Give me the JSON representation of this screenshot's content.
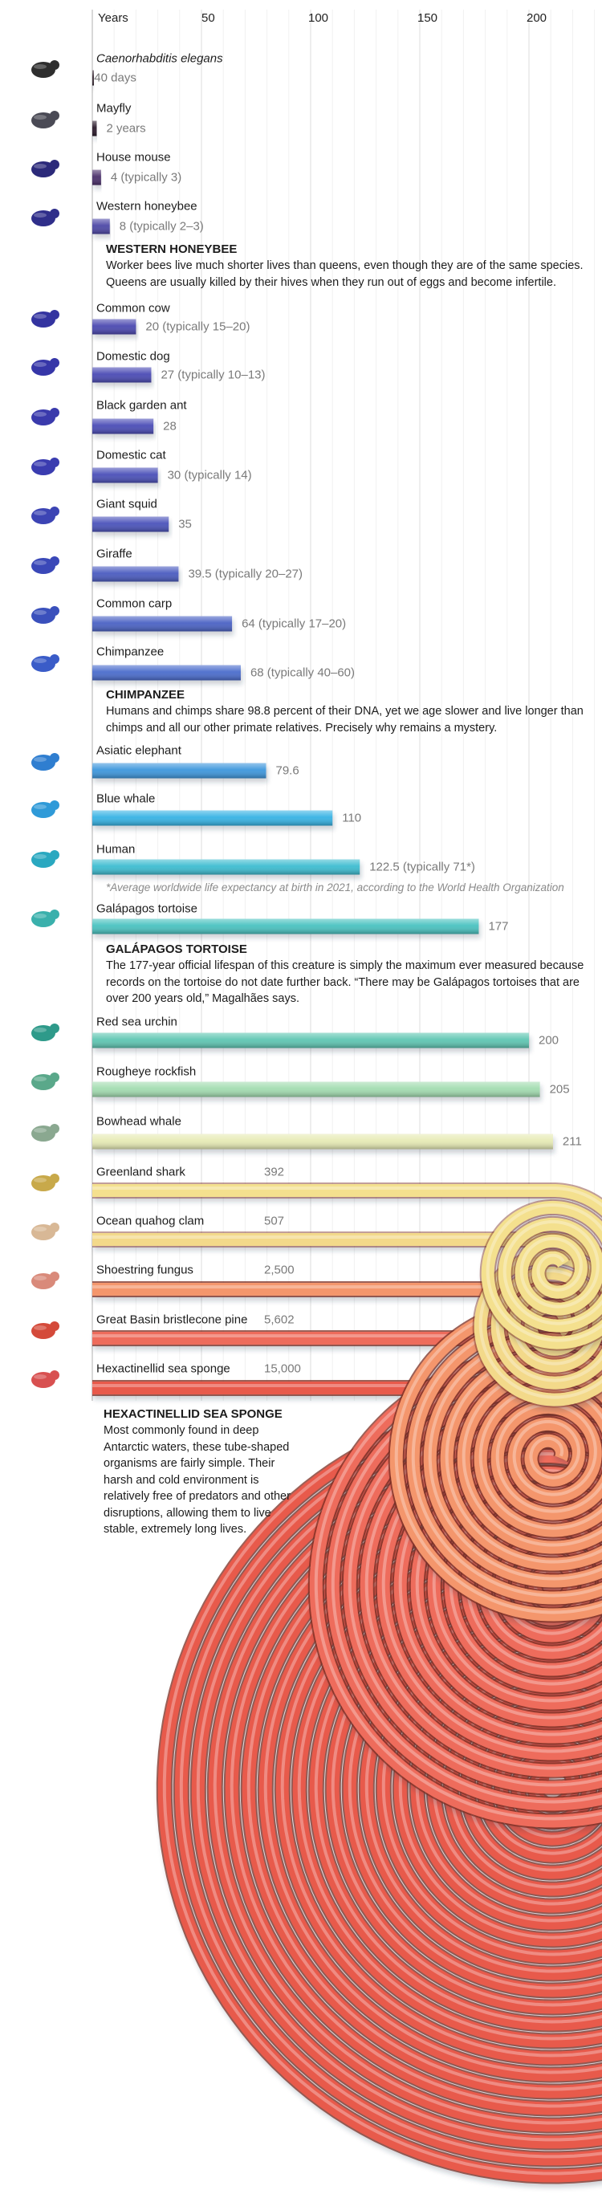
{
  "chart_data": {
    "type": "bar",
    "orientation": "horizontal",
    "xlabel": "Years",
    "xlim": [
      0,
      211
    ],
    "ticks": [
      50,
      100,
      150,
      200
    ],
    "grid": true,
    "note_on_scale": "bars for values beyond the axis coil into spirals",
    "rows": [
      {
        "name": "Caenorhabditis elegans",
        "value": 0.11,
        "value_label": "40 days",
        "color": "#3a2a35",
        "icon": "worm-icon",
        "icon_color": "#2e2e2e"
      },
      {
        "name": "Mayfly",
        "value": 2,
        "value_label": "2 years",
        "color": "#2a1a2a",
        "icon": "mayfly-icon",
        "icon_color": "#4a4a55"
      },
      {
        "name": "House mouse",
        "value": 4,
        "value_label": "4 (typically 3)",
        "color": "#4a2f6a",
        "icon": "mouse-icon",
        "icon_color": "#2c2a7a"
      },
      {
        "name": "Western honeybee",
        "value": 8,
        "value_label": "8 (typically 2–3)",
        "color": "#4d47a6",
        "icon": "bee-icon",
        "icon_color": "#2f2e8a"
      },
      {
        "name": "Common cow",
        "value": 20,
        "value_label": "20 (typically 15–20)",
        "color": "#4a48b0",
        "icon": "cow-icon",
        "icon_color": "#3434a0"
      },
      {
        "name": "Domestic dog",
        "value": 27,
        "value_label": "27 (typically 10–13)",
        "color": "#4a4ab4",
        "icon": "dog-icon",
        "icon_color": "#3636a8"
      },
      {
        "name": "Black garden ant",
        "value": 28,
        "value_label": "28",
        "color": "#4a4cb6",
        "icon": "ant-icon",
        "icon_color": "#3a3aac"
      },
      {
        "name": "Domestic cat",
        "value": 30,
        "value_label": "30 (typically 14)",
        "color": "#4a4fb8",
        "icon": "cat-icon",
        "icon_color": "#3a3cb0"
      },
      {
        "name": "Giant squid",
        "value": 35,
        "value_label": "35",
        "color": "#4a52ba",
        "icon": "squid-icon",
        "icon_color": "#3c44b4"
      },
      {
        "name": "Giraffe",
        "value": 39.5,
        "value_label": "39.5 (typically 20–27)",
        "color": "#4a5bc0",
        "icon": "giraffe-icon",
        "icon_color": "#3a48b8"
      },
      {
        "name": "Common carp",
        "value": 64,
        "value_label": "64 (typically 17–20)",
        "color": "#4a62c4",
        "icon": "carp-icon",
        "icon_color": "#3a50bc"
      },
      {
        "name": "Chimpanzee",
        "value": 68,
        "value_label": "68 (typically 40–60)",
        "color": "#4a6ccc",
        "icon": "chimpanzee-icon",
        "icon_color": "#3a5cc8"
      },
      {
        "name": "Asiatic elephant",
        "value": 79.6,
        "value_label": "79.6",
        "color": "#3d96dc",
        "icon": "elephant-icon",
        "icon_color": "#2f7ed0"
      },
      {
        "name": "Blue whale",
        "value": 110,
        "value_label": "110",
        "color": "#36b2e4",
        "icon": "whale-icon",
        "icon_color": "#2f9ad8"
      },
      {
        "name": "Human",
        "value": 122.5,
        "value_label": "122.5 (typically 71*)",
        "color": "#3cbcd0",
        "icon": "human-icon",
        "icon_color": "#2aa8c0"
      },
      {
        "name": "Galápagos tortoise",
        "value": 177,
        "value_label": "177",
        "color": "#48c2c0",
        "icon": "tortoise-icon",
        "icon_color": "#3ab0ac"
      },
      {
        "name": "Red sea urchin",
        "value": 200,
        "value_label": "200",
        "color": "#5ec6b2",
        "icon": "urchin-icon",
        "icon_color": "#2e9a8a"
      },
      {
        "name": "Rougheye rockfish",
        "value": 205,
        "value_label": "205",
        "color": "#a2dcb0",
        "icon": "rockfish-icon",
        "icon_color": "#5aa88a"
      },
      {
        "name": "Bowhead whale",
        "value": 211,
        "value_label": "211",
        "color": "#e6eab4",
        "icon": "bowhead-whale-icon",
        "icon_color": "#8aa890"
      },
      {
        "name": "Greenland shark",
        "value": 392,
        "value_label": "392",
        "color": "#f4e08e",
        "icon": "shark-icon",
        "icon_color": "#c8a94a"
      },
      {
        "name": "Ocean quahog clam",
        "value": 507,
        "value_label": "507",
        "color": "#f3d98a",
        "icon": "clam-icon",
        "icon_color": "#d8b896"
      },
      {
        "name": "Shoestring fungus",
        "value": 2500,
        "value_label": "2,500",
        "color": "#f4966c",
        "icon": "fungus-icon",
        "icon_color": "#d98a7a"
      },
      {
        "name": "Great Basin bristlecone pine",
        "value": 5602,
        "value_label": "5,602",
        "color": "#ee6c5c",
        "icon": "pine-icon",
        "icon_color": "#d44a3a"
      },
      {
        "name": "Hexactinellid sea sponge",
        "value": 15000,
        "value_label": "15,000",
        "color": "#e85a4c",
        "icon": "sponge-icon",
        "icon_color": "#d85050"
      }
    ]
  },
  "notes": {
    "honeybee": {
      "title": "WESTERN HONEYBEE",
      "text": "Worker bees live much shorter lives than queens, even though they are of the same species. Queens are usually killed by their hives when they run out of eggs and become infertile."
    },
    "chimpanzee": {
      "title": "CHIMPANZEE",
      "text": "Humans and chimps share 98.8 percent of their DNA, yet we age slower and live longer than chimps and all our other primate relatives. Precisely why remains a mystery."
    },
    "tortoise": {
      "title": "GALÁPAGOS TORTOISE",
      "text": "The 177-year official lifespan of this creature is simply the maximum ever measured because records on the tortoise do not date further back. “There may be Galápagos tortoises that are over 200 years old,” Magalhães says."
    },
    "sponge": {
      "title": "HEXACTINELLID SEA SPONGE",
      "text": "Most commonly found in deep Antarctic waters, these tube-shaped organisms are fairly simple. Their harsh and cold environment is relatively free of predators and other disruptions, allowing them to live stable, extremely long lives."
    }
  },
  "footnote": "*Average worldwide life expectancy at birth in 2021, according to the World Health Organization"
}
